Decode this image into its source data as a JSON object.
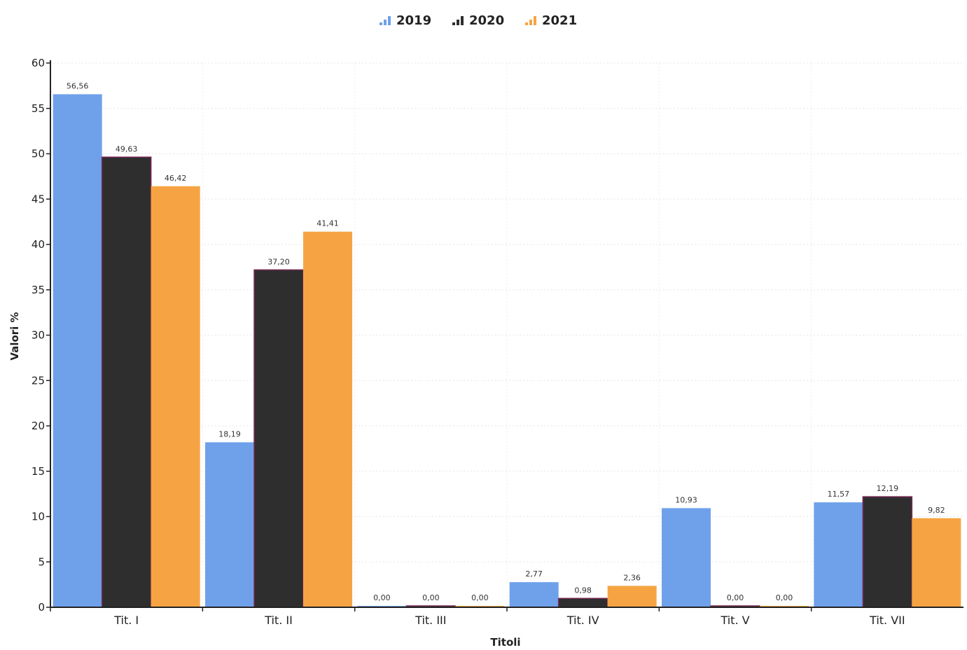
{
  "chart_data": {
    "type": "bar",
    "title": "",
    "xlabel": "Titoli",
    "ylabel": "Valori %",
    "ylim": [
      0,
      60
    ],
    "yticks": [
      0,
      5,
      10,
      15,
      20,
      25,
      30,
      35,
      40,
      45,
      50,
      55,
      60
    ],
    "grid": true,
    "legend_position": "top-center",
    "categories": [
      "Tit. I",
      "Tit. II",
      "Tit. III",
      "Tit. IV",
      "Tit. V",
      "Tit. VII"
    ],
    "series": [
      {
        "name": "2019",
        "color": "#6fa1ea",
        "values": [
          56.56,
          18.19,
          0.0,
          2.77,
          10.93,
          11.57
        ],
        "labels": [
          "56,56",
          "18,19",
          "0,00",
          "2,77",
          "10,93",
          "11,57"
        ]
      },
      {
        "name": "2020",
        "color": "#2e2e2e",
        "values": [
          49.63,
          37.2,
          0.0,
          0.98,
          0.0,
          12.19
        ],
        "labels": [
          "49,63",
          "37,20",
          "0,00",
          "0,98",
          "0,00",
          "12,19"
        ]
      },
      {
        "name": "2021",
        "color": "#f6a443",
        "values": [
          46.42,
          41.41,
          0.0,
          2.36,
          0.0,
          9.82
        ],
        "labels": [
          "46,42",
          "41,41",
          "0,00",
          "2,36",
          "0,00",
          "9,82"
        ]
      }
    ]
  }
}
